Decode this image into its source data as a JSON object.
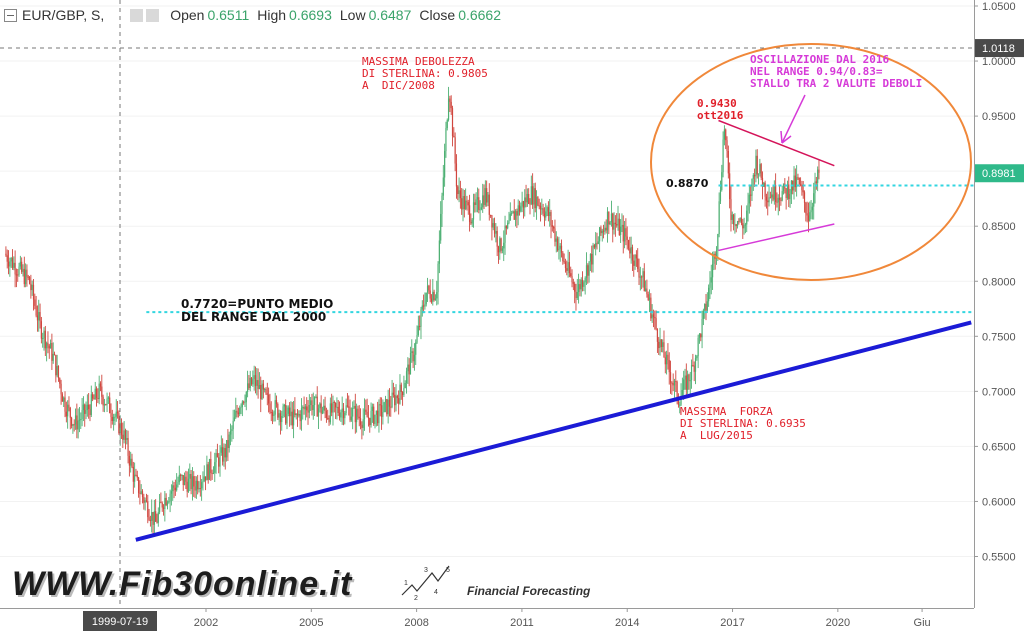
{
  "header": {
    "symbol": "EUR/GBP, S,",
    "open_label": "Open",
    "open_value": "0.6511",
    "high_label": "High",
    "high_value": "0.6693",
    "low_label": "Low",
    "low_value": "0.6487",
    "close_label": "Close",
    "close_value": "0.6662"
  },
  "annotations": {
    "max_weakness": "MASSIMA DEBOLEZZA\nDI STERLINA: 0.9805\nA  DIC/2008",
    "max_strength": "MASSIMA  FORZA\nDI STERLINA: 0.6935\nA  LUG/2015",
    "mid_range": "0.7720=PUNTO MEDIO\nDEL RANGE DAL 2000",
    "oscillation": "OSCILLAZIONE DAL 2016\nNEL RANGE 0.94/0.83=\nSTALLO TRA 2 VALUTE DEBOLI",
    "peak_2016": "0.9430\nott2016",
    "level_8870": "0.8870"
  },
  "watermark": {
    "site": "WWW.Fib30online.it",
    "tagline": "Financial Forecasting",
    "wave_labels": [
      "1",
      "2",
      "3",
      "4",
      "5"
    ]
  },
  "colors": {
    "up": "#4caf72",
    "down": "#d0463e",
    "trend": "#1b1bd6",
    "cyan": "#33d6e0",
    "circle": "#f0883a",
    "magenta": "#d63ad8",
    "red_line": "#d4145a"
  },
  "chart_data": {
    "type": "candlestick",
    "title": "EUR/GBP",
    "ylim": [
      0.5,
      1.05
    ],
    "y_ticks": [
      "1.0500",
      "1.0000",
      "0.9500",
      "0.9000",
      "0.8500",
      "0.8000",
      "0.7500",
      "0.7000",
      "0.6500",
      "0.6000",
      "0.5500"
    ],
    "x_ticks": [
      "2002",
      "2005",
      "2008",
      "2011",
      "2014",
      "2017",
      "2020",
      "Giu"
    ],
    "x_tick_years": [
      2002,
      2005,
      2008,
      2011,
      2014,
      2017,
      2020,
      2022.4
    ],
    "crosshair_date_label": "1999-07-19",
    "crosshair_date": 1999.55,
    "crosshair_price_label": "1.0118",
    "crosshair_price": 1.0118,
    "last_price_label": "0.8981",
    "last_price": 0.8981,
    "x_range": [
      1996.3,
      2023.8
    ],
    "path_points": [
      [
        1996.3,
        0.825
      ],
      [
        1997.0,
        0.8
      ],
      [
        1997.3,
        0.76
      ],
      [
        1997.7,
        0.73
      ],
      [
        1998.0,
        0.69
      ],
      [
        1998.3,
        0.67
      ],
      [
        1998.7,
        0.685
      ],
      [
        1999.0,
        0.7
      ],
      [
        1999.4,
        0.68
      ],
      [
        1999.7,
        0.66
      ],
      [
        2000.0,
        0.62
      ],
      [
        2000.3,
        0.6
      ],
      [
        2000.6,
        0.58
      ],
      [
        2000.8,
        0.6
      ],
      [
        2001.3,
        0.62
      ],
      [
        2001.7,
        0.615
      ],
      [
        2002.0,
        0.625
      ],
      [
        2002.6,
        0.645
      ],
      [
        2003.0,
        0.69
      ],
      [
        2003.4,
        0.71
      ],
      [
        2003.8,
        0.69
      ],
      [
        2004.2,
        0.68
      ],
      [
        2004.6,
        0.675
      ],
      [
        2005.0,
        0.69
      ],
      [
        2005.5,
        0.68
      ],
      [
        2006.0,
        0.685
      ],
      [
        2006.5,
        0.675
      ],
      [
        2007.0,
        0.68
      ],
      [
        2007.6,
        0.7
      ],
      [
        2008.0,
        0.74
      ],
      [
        2008.3,
        0.79
      ],
      [
        2008.6,
        0.79
      ],
      [
        2008.96,
        0.9805
      ],
      [
        2009.2,
        0.88
      ],
      [
        2009.6,
        0.86
      ],
      [
        2010.0,
        0.88
      ],
      [
        2010.4,
        0.83
      ],
      [
        2010.8,
        0.86
      ],
      [
        2011.3,
        0.88
      ],
      [
        2011.8,
        0.86
      ],
      [
        2012.2,
        0.82
      ],
      [
        2012.6,
        0.79
      ],
      [
        2013.0,
        0.82
      ],
      [
        2013.5,
        0.86
      ],
      [
        2014.0,
        0.84
      ],
      [
        2014.5,
        0.8
      ],
      [
        2015.0,
        0.74
      ],
      [
        2015.5,
        0.6935
      ],
      [
        2015.9,
        0.72
      ],
      [
        2016.3,
        0.78
      ],
      [
        2016.6,
        0.84
      ],
      [
        2016.8,
        0.943
      ],
      [
        2017.0,
        0.86
      ],
      [
        2017.4,
        0.85
      ],
      [
        2017.7,
        0.91
      ],
      [
        2018.0,
        0.88
      ],
      [
        2018.5,
        0.88
      ],
      [
        2018.9,
        0.89
      ],
      [
        2019.2,
        0.86
      ],
      [
        2019.5,
        0.8981
      ]
    ],
    "lines": [
      {
        "name": "trend",
        "from": [
          2000.0,
          0.5652
        ],
        "to": [
          2023.8,
          0.7626
        ]
      },
      {
        "name": "midpoint",
        "value": 0.772,
        "from_x": 2000.3
      },
      {
        "name": "level_8870",
        "value": 0.887,
        "from_x": 2016.6
      },
      {
        "name": "upper_channel",
        "from": [
          2016.6,
          0.946
        ],
        "to": [
          2019.9,
          0.905
        ]
      },
      {
        "name": "lower_channel",
        "from": [
          2016.6,
          0.828
        ],
        "to": [
          2019.9,
          0.852
        ]
      }
    ]
  }
}
